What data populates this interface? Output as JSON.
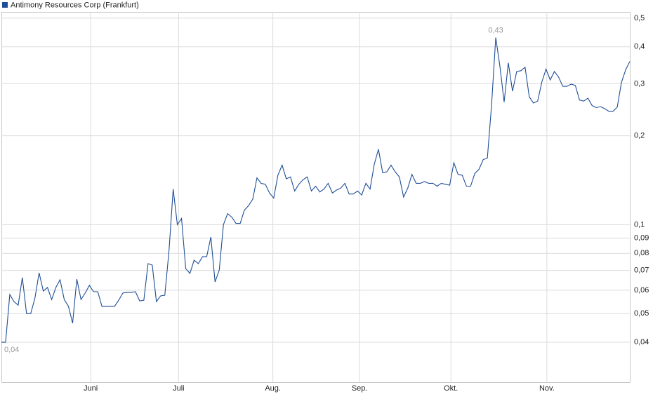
{
  "chart_data": {
    "type": "line",
    "yscale": "log",
    "grid": true,
    "legend": "top-left",
    "xlim": [
      0,
      150
    ],
    "xticks": [
      {
        "value": 21.3,
        "label": "Juni"
      },
      {
        "value": 42.3,
        "label": "Juli"
      },
      {
        "value": 64.8,
        "label": "Aug."
      },
      {
        "value": 85.5,
        "label": "Sep."
      },
      {
        "value": 107.3,
        "label": "Okt."
      },
      {
        "value": 130.2,
        "label": "Nov."
      }
    ],
    "ylim": [
      0.0293,
      0.525
    ],
    "yticks": [
      {
        "value": 0.5,
        "label": "0,5"
      },
      {
        "value": 0.4,
        "label": "0,4"
      },
      {
        "value": 0.3,
        "label": "0,3"
      },
      {
        "value": 0.2,
        "label": "0,2"
      },
      {
        "value": 0.1,
        "label": "0,1"
      },
      {
        "value": 0.09,
        "label": "0,09"
      },
      {
        "value": 0.08,
        "label": "0,08"
      },
      {
        "value": 0.07,
        "label": "0,07"
      },
      {
        "value": 0.06,
        "label": "0,06"
      },
      {
        "value": 0.05,
        "label": "0,05"
      },
      {
        "value": 0.04,
        "label": "0,04"
      }
    ],
    "series": [
      {
        "name": "Antimony Resources Corp (Frankfurt)",
        "color": "#1f4e96",
        "values": [
          0.04,
          0.04,
          0.058,
          0.0549,
          0.0534,
          0.0662,
          0.05,
          0.05,
          0.0564,
          0.0687,
          0.0596,
          0.0613,
          0.0558,
          0.0613,
          0.0651,
          0.0558,
          0.0529,
          0.0464,
          0.0654,
          0.0558,
          0.0587,
          0.0623,
          0.0593,
          0.0593,
          0.0529,
          0.0529,
          0.0529,
          0.0529,
          0.0555,
          0.0587,
          0.059,
          0.059,
          0.0593,
          0.0552,
          0.0555,
          0.0738,
          0.073,
          0.0549,
          0.0574,
          0.0577,
          0.0814,
          0.132,
          0.1,
          0.105,
          0.071,
          0.0684,
          0.0758,
          0.0738,
          0.0779,
          0.0779,
          0.0908,
          0.064,
          0.0702,
          0.1,
          0.109,
          0.106,
          0.101,
          0.101,
          0.112,
          0.116,
          0.122,
          0.144,
          0.138,
          0.137,
          0.128,
          0.123,
          0.147,
          0.159,
          0.143,
          0.145,
          0.13,
          0.137,
          0.142,
          0.145,
          0.13,
          0.135,
          0.129,
          0.132,
          0.138,
          0.128,
          0.131,
          0.133,
          0.138,
          0.127,
          0.127,
          0.13,
          0.126,
          0.138,
          0.132,
          0.16,
          0.18,
          0.15,
          0.151,
          0.159,
          0.151,
          0.145,
          0.124,
          0.133,
          0.148,
          0.138,
          0.138,
          0.14,
          0.138,
          0.138,
          0.135,
          0.138,
          0.137,
          0.136,
          0.162,
          0.148,
          0.147,
          0.135,
          0.135,
          0.149,
          0.154,
          0.166,
          0.168,
          0.254,
          0.43,
          0.343,
          0.26,
          0.353,
          0.283,
          0.33,
          0.332,
          0.341,
          0.271,
          0.258,
          0.262,
          0.304,
          0.336,
          0.309,
          0.33,
          0.316,
          0.294,
          0.294,
          0.299,
          0.296,
          0.264,
          0.262,
          0.268,
          0.253,
          0.249,
          0.251,
          0.247,
          0.242,
          0.242,
          0.25,
          0.303,
          0.334,
          0.357
        ],
        "value_labels": [
          "0,04",
          null,
          null,
          null,
          null,
          null,
          null,
          null,
          null,
          null,
          null,
          null,
          null,
          null,
          null,
          null,
          null,
          null,
          null,
          null,
          null,
          null,
          null,
          null,
          null,
          null,
          null,
          null,
          null,
          null,
          null,
          null,
          null,
          null,
          null,
          null,
          null,
          null,
          null,
          null,
          null,
          null,
          null,
          null,
          null,
          null,
          null,
          null,
          null,
          null,
          null,
          null,
          null,
          null,
          null,
          null,
          null,
          null,
          null,
          null,
          null,
          null,
          null,
          null,
          null,
          null,
          null,
          null,
          null,
          null,
          null,
          null,
          null,
          null,
          null,
          null,
          null,
          null,
          null,
          null,
          null,
          null,
          null,
          null,
          null,
          null,
          null,
          null,
          null,
          null,
          null,
          null,
          null,
          null,
          null,
          null,
          null,
          null,
          null,
          null,
          null,
          null,
          null,
          null,
          null,
          null,
          null,
          null,
          null,
          null,
          null,
          null,
          null,
          null,
          null,
          null,
          null,
          null,
          "0,43",
          null,
          null,
          null,
          null,
          null,
          null,
          null,
          null,
          null,
          null,
          null,
          null,
          null,
          null,
          null,
          null,
          null,
          null,
          null,
          null,
          null,
          null,
          null,
          null,
          null,
          null,
          null,
          null,
          null,
          null,
          null,
          null
        ]
      }
    ]
  }
}
